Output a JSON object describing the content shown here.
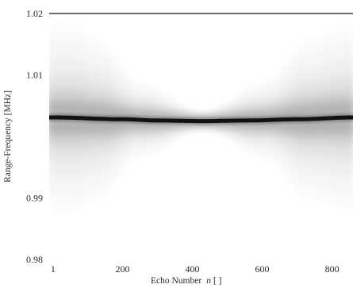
{
  "chart_data": {
    "type": "heatmap",
    "title": "",
    "xlabel": "Echo Number",
    "xlabel_symbol": "n",
    "xlabel_unit": "[ ]",
    "ylabel": "Range-Frequency [MHz]",
    "x_ticks": [
      "1",
      "200",
      "400",
      "600",
      "800"
    ],
    "x_tick_values": [
      1,
      200,
      400,
      600,
      800
    ],
    "y_ticks": [
      "0.98",
      "0.99",
      "1.01",
      "1.02"
    ],
    "y_tick_values": [
      0.98,
      0.99,
      1.01,
      1.02
    ],
    "xlim": [
      -10,
      860
    ],
    "ylim": [
      0.98,
      1.02
    ],
    "grid": false,
    "legend": "none",
    "colormap": "gray_r",
    "ridge": {
      "description_points": [
        {
          "x": 1,
          "y": 1.0031
        },
        {
          "x": 200,
          "y": 1.0028
        },
        {
          "x": 300,
          "y": 1.0026
        },
        {
          "x": 430,
          "y": 1.0025
        },
        {
          "x": 560,
          "y": 1.0026
        },
        {
          "x": 700,
          "y": 1.0028
        },
        {
          "x": 860,
          "y": 1.0031
        }
      ]
    },
    "spread_envelope": {
      "x": [
        -10,
        60,
        130,
        250,
        430,
        600,
        740,
        860
      ],
      "half_width_mhz": [
        0.0145,
        0.0148,
        0.0125,
        0.0055,
        0.0004,
        0.0055,
        0.0125,
        0.0148
      ]
    }
  }
}
